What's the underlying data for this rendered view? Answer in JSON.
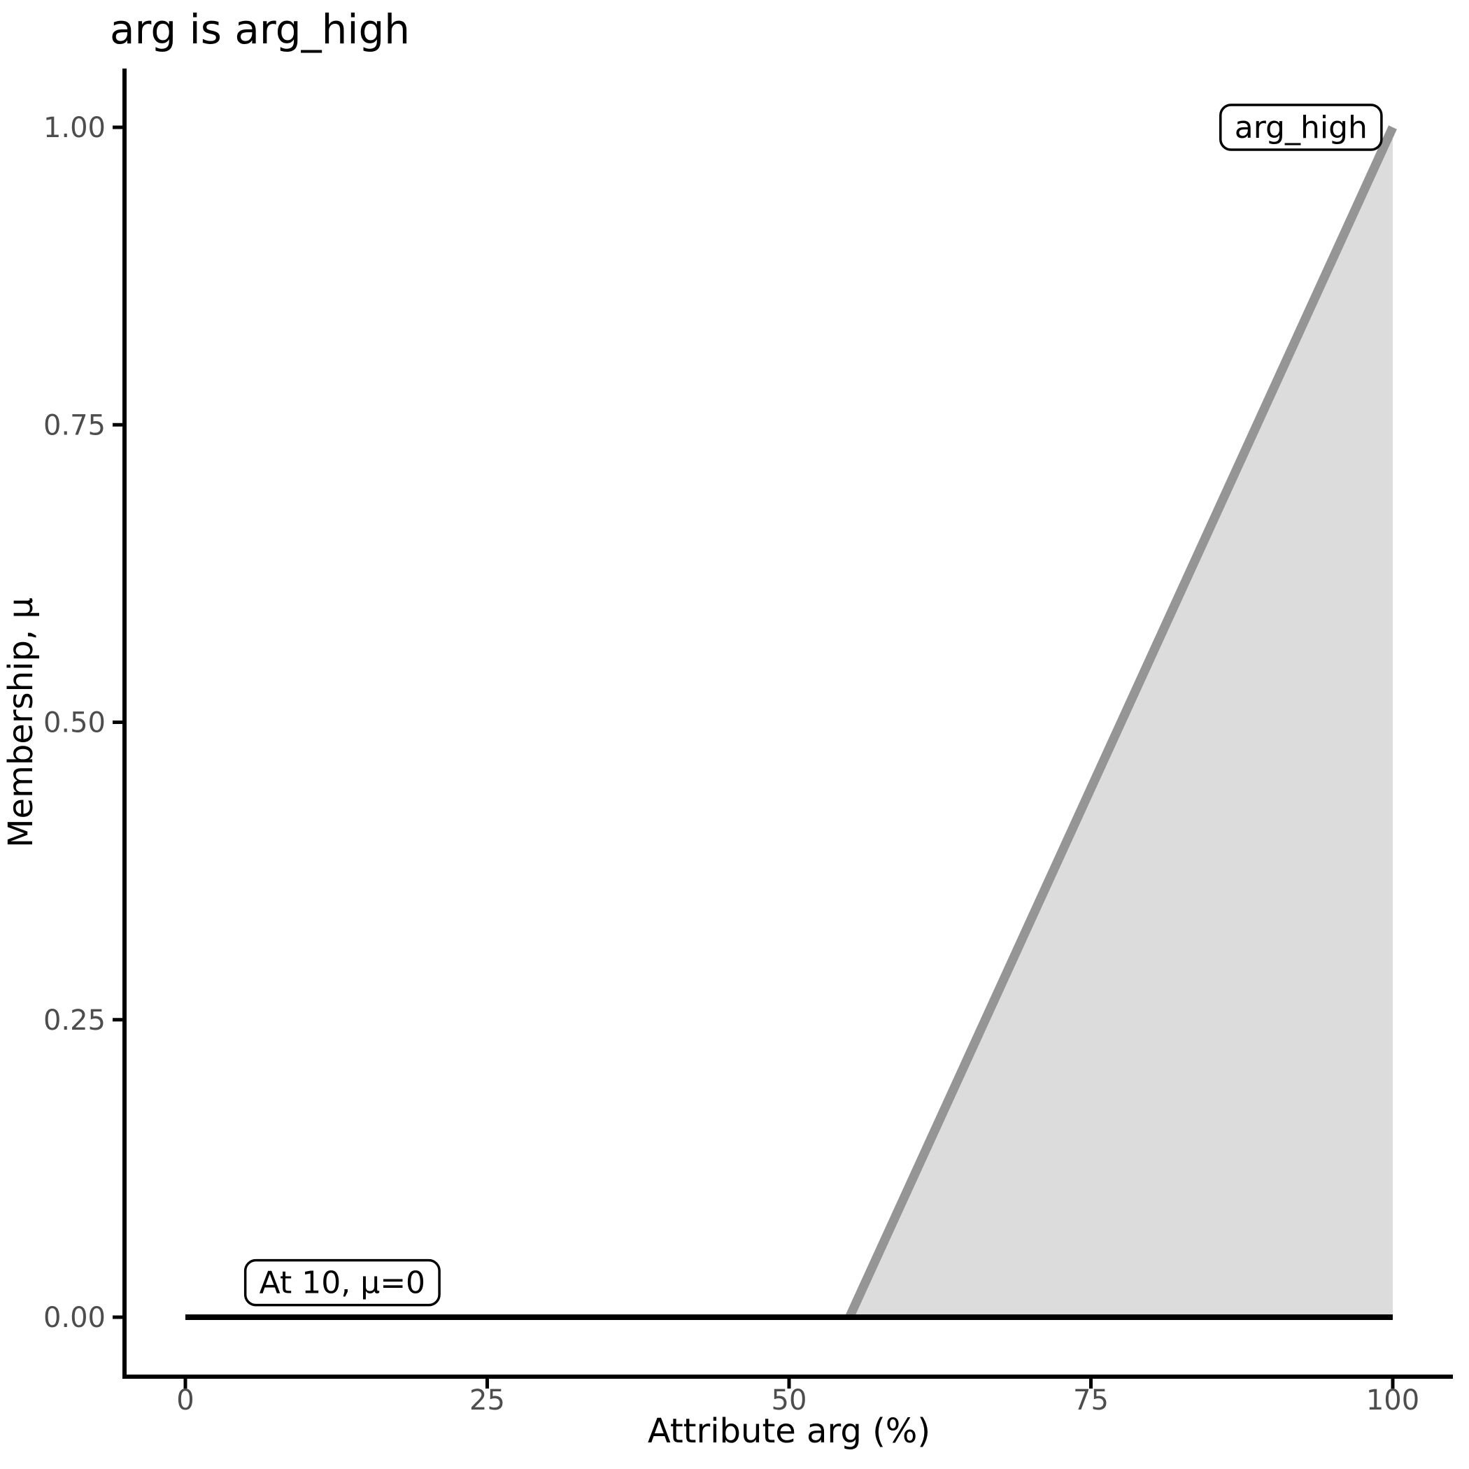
{
  "chart_data": {
    "type": "area",
    "title": "arg is arg_high",
    "xlabel": "Attribute arg (%)",
    "ylabel": "Membership, μ",
    "xlim": [
      0,
      100
    ],
    "ylim": [
      0,
      1
    ],
    "x_ticks": {
      "values": [
        0,
        25,
        50,
        75,
        100
      ],
      "labels": [
        "0",
        "25",
        "50",
        "75",
        "100"
      ]
    },
    "y_ticks": {
      "values": [
        0,
        0.25,
        0.5,
        0.75,
        1
      ],
      "labels": [
        "0.00",
        "0.25",
        "0.50",
        "0.75",
        "1.00"
      ]
    },
    "grid": false,
    "legend": "none",
    "series": [
      {
        "name": "arg_high-membership-ramp",
        "draw": "line+area",
        "points": [
          [
            55,
            0
          ],
          [
            100,
            1
          ]
        ],
        "baseline_mu": 0,
        "line_color": "#959595",
        "fill_color": "#DCDCDC",
        "line_width": 13
      },
      {
        "name": "zero-membership-line",
        "draw": "line",
        "points": [
          [
            0,
            0
          ],
          [
            100,
            0
          ]
        ],
        "line_color": "#000000",
        "line_width": 8
      }
    ],
    "annotations": [
      {
        "text": "At 10, μ=0",
        "x": 13,
        "mu": 0.029
      },
      {
        "text": "arg_high",
        "x": 92.4,
        "mu": 1.0
      }
    ],
    "colors": {
      "axis": "#000000",
      "tick_label": "#4D4D4D",
      "title_text": "#000000",
      "annotation_border": "#000000",
      "annotation_bg": "#FFFFFF",
      "background": "#FFFFFF"
    }
  }
}
